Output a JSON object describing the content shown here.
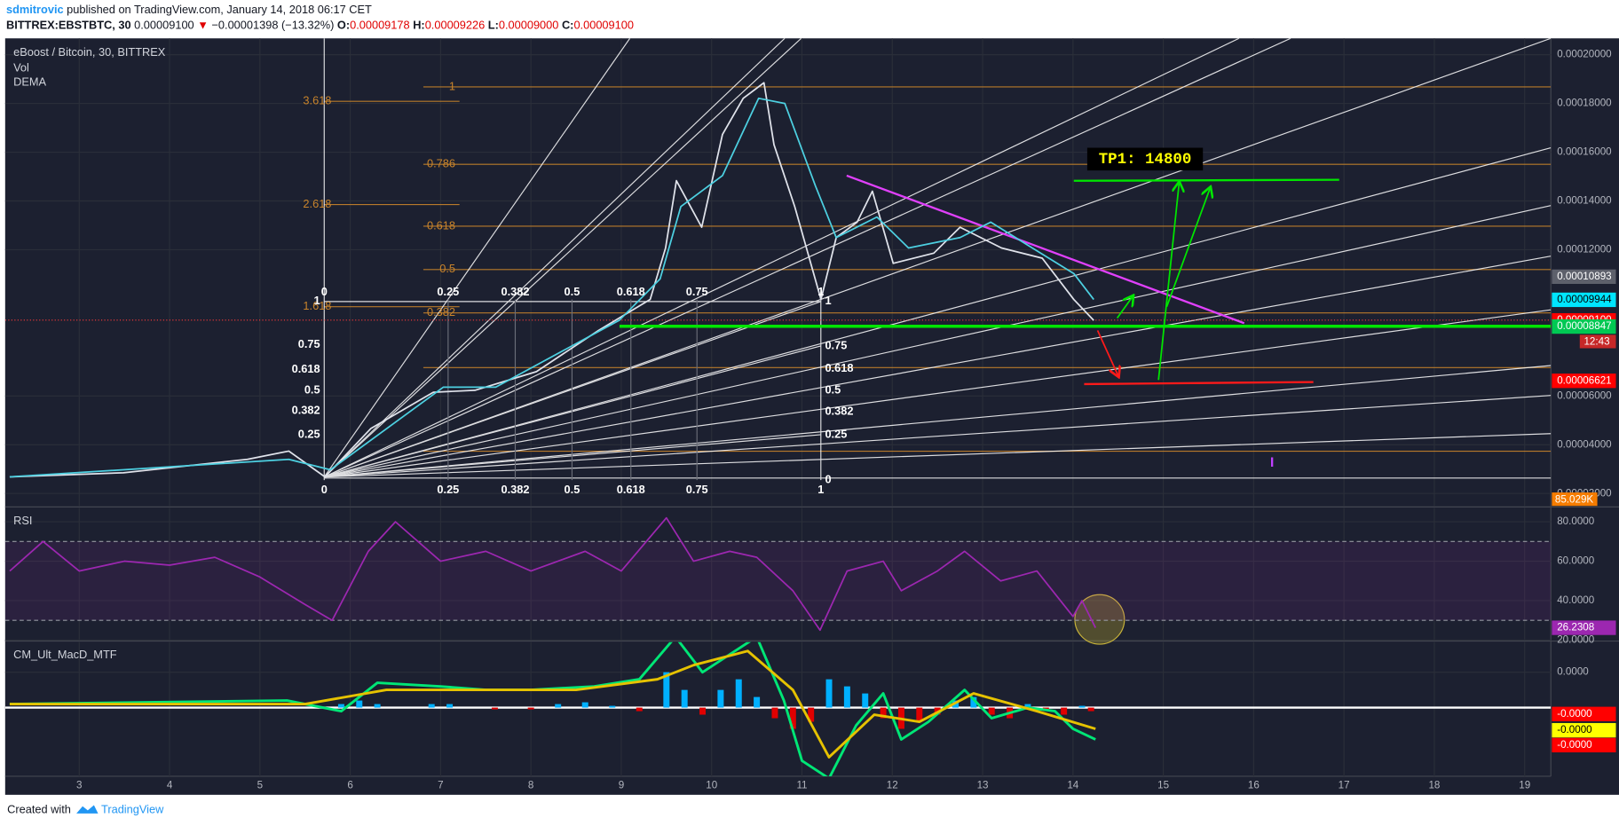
{
  "header": {
    "author": "sdmitrovic",
    "published": "published on TradingView.com, January 14, 2018 06:17 CET",
    "symbol": "BITTREX:EBSTBTC, 30",
    "last": "0.00009100",
    "change_arrow": "▼",
    "change": "−0.00001398 (−13.32%)",
    "ohlc": [
      {
        "label": "O:",
        "value": "0.00009178"
      },
      {
        "label": "H:",
        "value": "0.00009226"
      },
      {
        "label": "L:",
        "value": "0.00009000"
      },
      {
        "label": "C:",
        "value": "0.00009100"
      }
    ]
  },
  "chart_data": [
    {
      "type": "line",
      "title": "eBoost / Bitcoin, 30, BITTREX",
      "indicator": "Vol",
      "xlim": [
        2.18,
        19.29
      ],
      "xticks": [
        3,
        4,
        5,
        6,
        7,
        8,
        9,
        10,
        11,
        12,
        13,
        14,
        15,
        16,
        17,
        18,
        19
      ],
      "ylim": [
        1.49e-05,
        0.0002067
      ],
      "yticks": [
        {
          "value": 0.0002,
          "label": "0.00020000"
        },
        {
          "value": 0.00018,
          "label": "0.00018000"
        },
        {
          "value": 0.00016,
          "label": "0.00016000"
        },
        {
          "value": 0.00014,
          "label": "0.00014000"
        },
        {
          "value": 0.00012,
          "label": "0.00012000"
        },
        {
          "value": 6e-05,
          "label": "0.00006000"
        },
        {
          "value": 4e-05,
          "label": "0.00004000"
        },
        {
          "value": 2e-05,
          "label": "0.00002000"
        }
      ],
      "grid": true,
      "series": [
        {
          "color": "#e0e3eb",
          "x": [
            2.23,
            3.49,
            4.86,
            5.32,
            5.72,
            6.23,
            6.92,
            7.38,
            8.06,
            8.75,
            9.32,
            9.49,
            9.61,
            9.89,
            10.12,
            10.35,
            10.58,
            10.69,
            10.92,
            11.21,
            11.38,
            11.61,
            11.78,
            12.01,
            12.46,
            12.75,
            13.21,
            13.66,
            14.01,
            14.23
          ],
          "values": [
            2.68e-05,
            2.85e-05,
            3.4e-05,
            3.74e-05,
            2.68e-05,
            4.67e-05,
            6.15e-05,
            6.23e-05,
            7e-05,
            8.69e-05,
            9.96e-05,
            0.0001207,
            0.0001483,
            0.0001292,
            0.0001673,
            0.0001821,
            0.0001885,
            0.0001631,
            0.0001377,
            9.96e-05,
            0.000125,
            0.0001313,
            0.000144,
            0.0001144,
            0.0001186,
            0.0001292,
            0.0001207,
            0.0001165,
            9.96e-05,
            9.1e-05
          ]
        },
        {
          "name": "DEMA",
          "color": "#4dd0e1",
          "x": [
            2.23,
            5.32,
            5.78,
            7.03,
            7.61,
            8.98,
            9.43,
            9.66,
            10.12,
            10.52,
            10.81,
            11.15,
            11.38,
            11.83,
            12.18,
            12.75,
            13.09,
            13.55,
            14.01,
            14.23
          ],
          "values": [
            2.68e-05,
            3.4e-05,
            2.97e-05,
            6.36e-05,
            6.36e-05,
            9.11e-05,
            0.000108,
            0.0001377,
            0.0001504,
            0.0001821,
            0.00018,
            0.0001461,
            0.000125,
            0.0001334,
            0.0001207,
            0.000125,
            0.0001313,
            0.0001207,
            0.0001102,
            9.96e-05
          ]
        }
      ],
      "price_labels": [
        {
          "value": 0.00010893,
          "color": "#5d606b"
        },
        {
          "value": 9.944e-05,
          "color": "#00e5ff"
        },
        {
          "value": 9.1e-05,
          "label": "0.00009100",
          "color": "#ff0000"
        },
        {
          "value": 8.847e-05,
          "color": "#00c853"
        },
        {
          "value": 6.621e-05,
          "color": "#ff0000"
        }
      ],
      "countdown": "12:43",
      "volume_label": "85.029K",
      "annotations": {
        "target": "TP1: 14800",
        "fib_right": [
          "1",
          "0.786",
          "0.618",
          "0.5",
          "0.382"
        ],
        "fib_left": [
          "3.618",
          "2.618",
          "1.618"
        ],
        "fan_top": [
          "0",
          "0.25",
          "0.382",
          "0.5",
          "0.618",
          "0.75",
          "1"
        ],
        "fan_bottom": [
          "0",
          "0.25",
          "0.382",
          "0.5",
          "0.618",
          "0.75",
          "1"
        ],
        "fan_left": [
          "1",
          "0.75",
          "0.618",
          "0.5",
          "0.382",
          "0.25"
        ],
        "fan_right": [
          "1",
          "0.75",
          "0.618",
          "0.5",
          "0.382",
          "0.25",
          "0"
        ]
      }
    },
    {
      "type": "line",
      "title": "RSI",
      "ylim": [
        20,
        87
      ],
      "yticks": [
        {
          "value": 80,
          "label": "80.0000"
        },
        {
          "value": 60,
          "label": "60.0000"
        },
        {
          "value": 40,
          "label": "40.0000"
        },
        {
          "value": 20,
          "label": "20.0000"
        }
      ],
      "band": [
        30,
        70
      ],
      "series": [
        {
          "color": "#9c27b0",
          "x": [
            2.23,
            2.6,
            3.0,
            3.5,
            4.0,
            4.5,
            5.0,
            5.5,
            5.8,
            6.2,
            6.5,
            7.0,
            7.5,
            8.0,
            8.6,
            9.0,
            9.5,
            9.8,
            10.2,
            10.5,
            10.9,
            11.2,
            11.5,
            11.9,
            12.1,
            12.5,
            12.8,
            13.2,
            13.6,
            14.0,
            14.1,
            14.25
          ],
          "values": [
            55,
            70,
            55,
            60,
            58,
            62,
            52,
            38,
            30,
            65,
            80,
            60,
            65,
            55,
            65,
            55,
            82,
            60,
            65,
            62,
            45,
            25,
            55,
            60,
            45,
            55,
            65,
            50,
            55,
            32,
            40,
            26.2308
          ]
        }
      ],
      "price_labels": [
        {
          "value": 26.2308,
          "color": "#9c27b0"
        }
      ]
    },
    {
      "type": "bar",
      "title": "CM_Ult_MacD_MTF",
      "ylim": [
        -1.94e-05,
        1.85e-05
      ],
      "yticks": [
        {
          "value": 1e-05,
          "label": "0.0000"
        }
      ],
      "up_color": "#00b0ff",
      "down_color": "#e00000",
      "x": [
        5.9,
        6.1,
        6.3,
        6.9,
        7.1,
        7.6,
        8.0,
        8.3,
        8.6,
        8.9,
        9.2,
        9.5,
        9.7,
        9.9,
        10.1,
        10.3,
        10.5,
        10.7,
        10.9,
        11.1,
        11.3,
        11.5,
        11.7,
        11.9,
        12.1,
        12.3,
        12.5,
        12.7,
        12.9,
        13.1,
        13.3,
        13.5,
        13.7,
        13.9,
        14.1,
        14.2
      ],
      "values": [
        1e-06,
        2e-06,
        1e-06,
        1e-06,
        1e-06,
        -5e-07,
        -5e-07,
        1e-06,
        1.5e-06,
        5e-07,
        -1e-06,
        1e-05,
        5e-06,
        -2e-06,
        5e-06,
        8e-06,
        3e-06,
        -3e-06,
        -6e-06,
        -4e-06,
        8e-06,
        6e-06,
        4e-06,
        -3e-06,
        -6e-06,
        -4e-06,
        -2e-06,
        2e-06,
        3e-06,
        -2e-06,
        -3e-06,
        1e-06,
        -1e-06,
        -2e-06,
        5e-07,
        -1e-06
      ],
      "series": [
        {
          "color": "#00e676",
          "x": [
            2.23,
            5.3,
            5.9,
            6.3,
            7.0,
            7.5,
            8.0,
            8.7,
            9.2,
            9.6,
            9.9,
            10.2,
            10.5,
            10.8,
            11.0,
            11.3,
            11.6,
            11.9,
            12.1,
            12.4,
            12.8,
            13.1,
            13.5,
            13.8,
            14.0,
            14.25
          ],
          "values": [
            1e-06,
            2e-06,
            -1e-06,
            7e-06,
            6e-06,
            5e-06,
            5e-06,
            6e-06,
            8e-06,
            2e-05,
            1e-05,
            1.5e-05,
            2e-05,
            2e-06,
            -1.5e-05,
            -2e-05,
            -5e-06,
            4e-06,
            -9e-06,
            -4e-06,
            5e-06,
            -3e-06,
            0,
            -1e-06,
            -6e-06,
            -9e-06
          ]
        },
        {
          "color": "#e6c200",
          "x": [
            2.23,
            5.5,
            6.4,
            7.2,
            8.5,
            9.4,
            9.8,
            10.4,
            10.9,
            11.3,
            11.8,
            12.3,
            12.9,
            13.6,
            14.25
          ],
          "values": [
            1e-06,
            1e-06,
            5e-06,
            5e-06,
            5e-06,
            8e-06,
            1.2e-05,
            1.6e-05,
            5e-06,
            -1.4e-05,
            -2e-06,
            -4e-06,
            4e-06,
            -1e-06,
            -6e-06
          ]
        }
      ],
      "price_labels": [
        {
          "value": -1.8e-06,
          "label": "-0.0000",
          "color": "#ff0000"
        },
        {
          "value": -6.4e-06,
          "label": "-0.0000",
          "color": "#ffff00"
        },
        {
          "value": -1.06e-05,
          "label": "-0.0000",
          "color": "#ff0000"
        }
      ]
    }
  ],
  "footer": {
    "created": "Created with",
    "brand": "TradingView"
  }
}
